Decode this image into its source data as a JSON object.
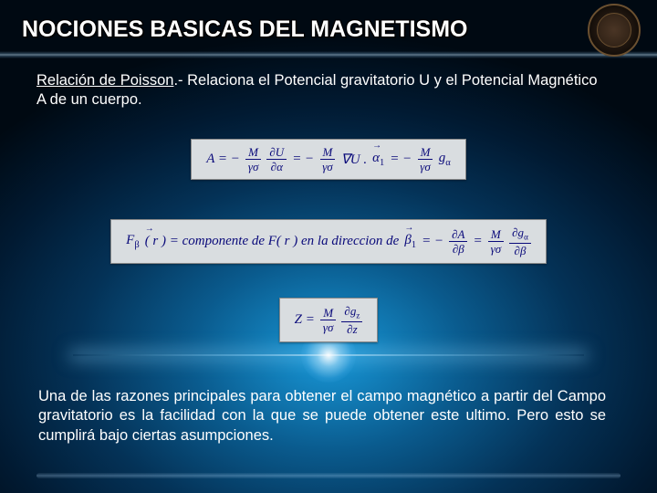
{
  "title": "NOCIONES BASICAS DEL MAGNETISMO",
  "intro": {
    "lead": "Relación de Poisson",
    "rest": ".- Relaciona el Potencial gravitatorio U y el Potencial Magnético A de un cuerpo."
  },
  "equations": {
    "eq1": {
      "pre": "A = −",
      "f1n": "M",
      "f1d": "γσ",
      "mid1": " ",
      "f2n": "∂U",
      "f2d": "∂α",
      "mid2": " = −",
      "f3n": "M",
      "f3d": "γσ",
      "mid3": " ∇U .",
      "alpha_hat": "α",
      "alpha_sub": "1",
      "mid4": " = −",
      "f4n": "M",
      "f4d": "γσ",
      "tail": " g",
      "tail_sub": "α"
    },
    "eq2": {
      "pre": "F",
      "pre_sub": "β",
      "arg": "( r ) = componente de F( r ) en la direccion de ",
      "beta_hat": "β",
      "beta_sub": "1",
      "mid1": " = −",
      "f1n": "∂A",
      "f1d": "∂β",
      "mid2": " = ",
      "f2n": "M",
      "f2d": "γσ",
      "mid3": " ",
      "f3n": "∂g",
      "f3d": "∂β",
      "f3n_sub": "α"
    },
    "eq3": {
      "pre": "Z = ",
      "f1n": "M",
      "f1d": "γσ",
      "mid": " ",
      "f2n": "∂g",
      "f2n_sub": "z",
      "f2d": "∂z"
    }
  },
  "conclusion": "Una de las razones principales para obtener el campo magnético a partir del Campo gravitatorio es la facilidad con la que se puede obtener este ultimo. Pero esto se cumplirá bajo ciertas asumpciones.",
  "colors": {
    "eq_text": "#0a0a7a",
    "eq_bg": "#d9dde0",
    "bg_center": "#1898d8",
    "bg_outer": "#000912"
  }
}
